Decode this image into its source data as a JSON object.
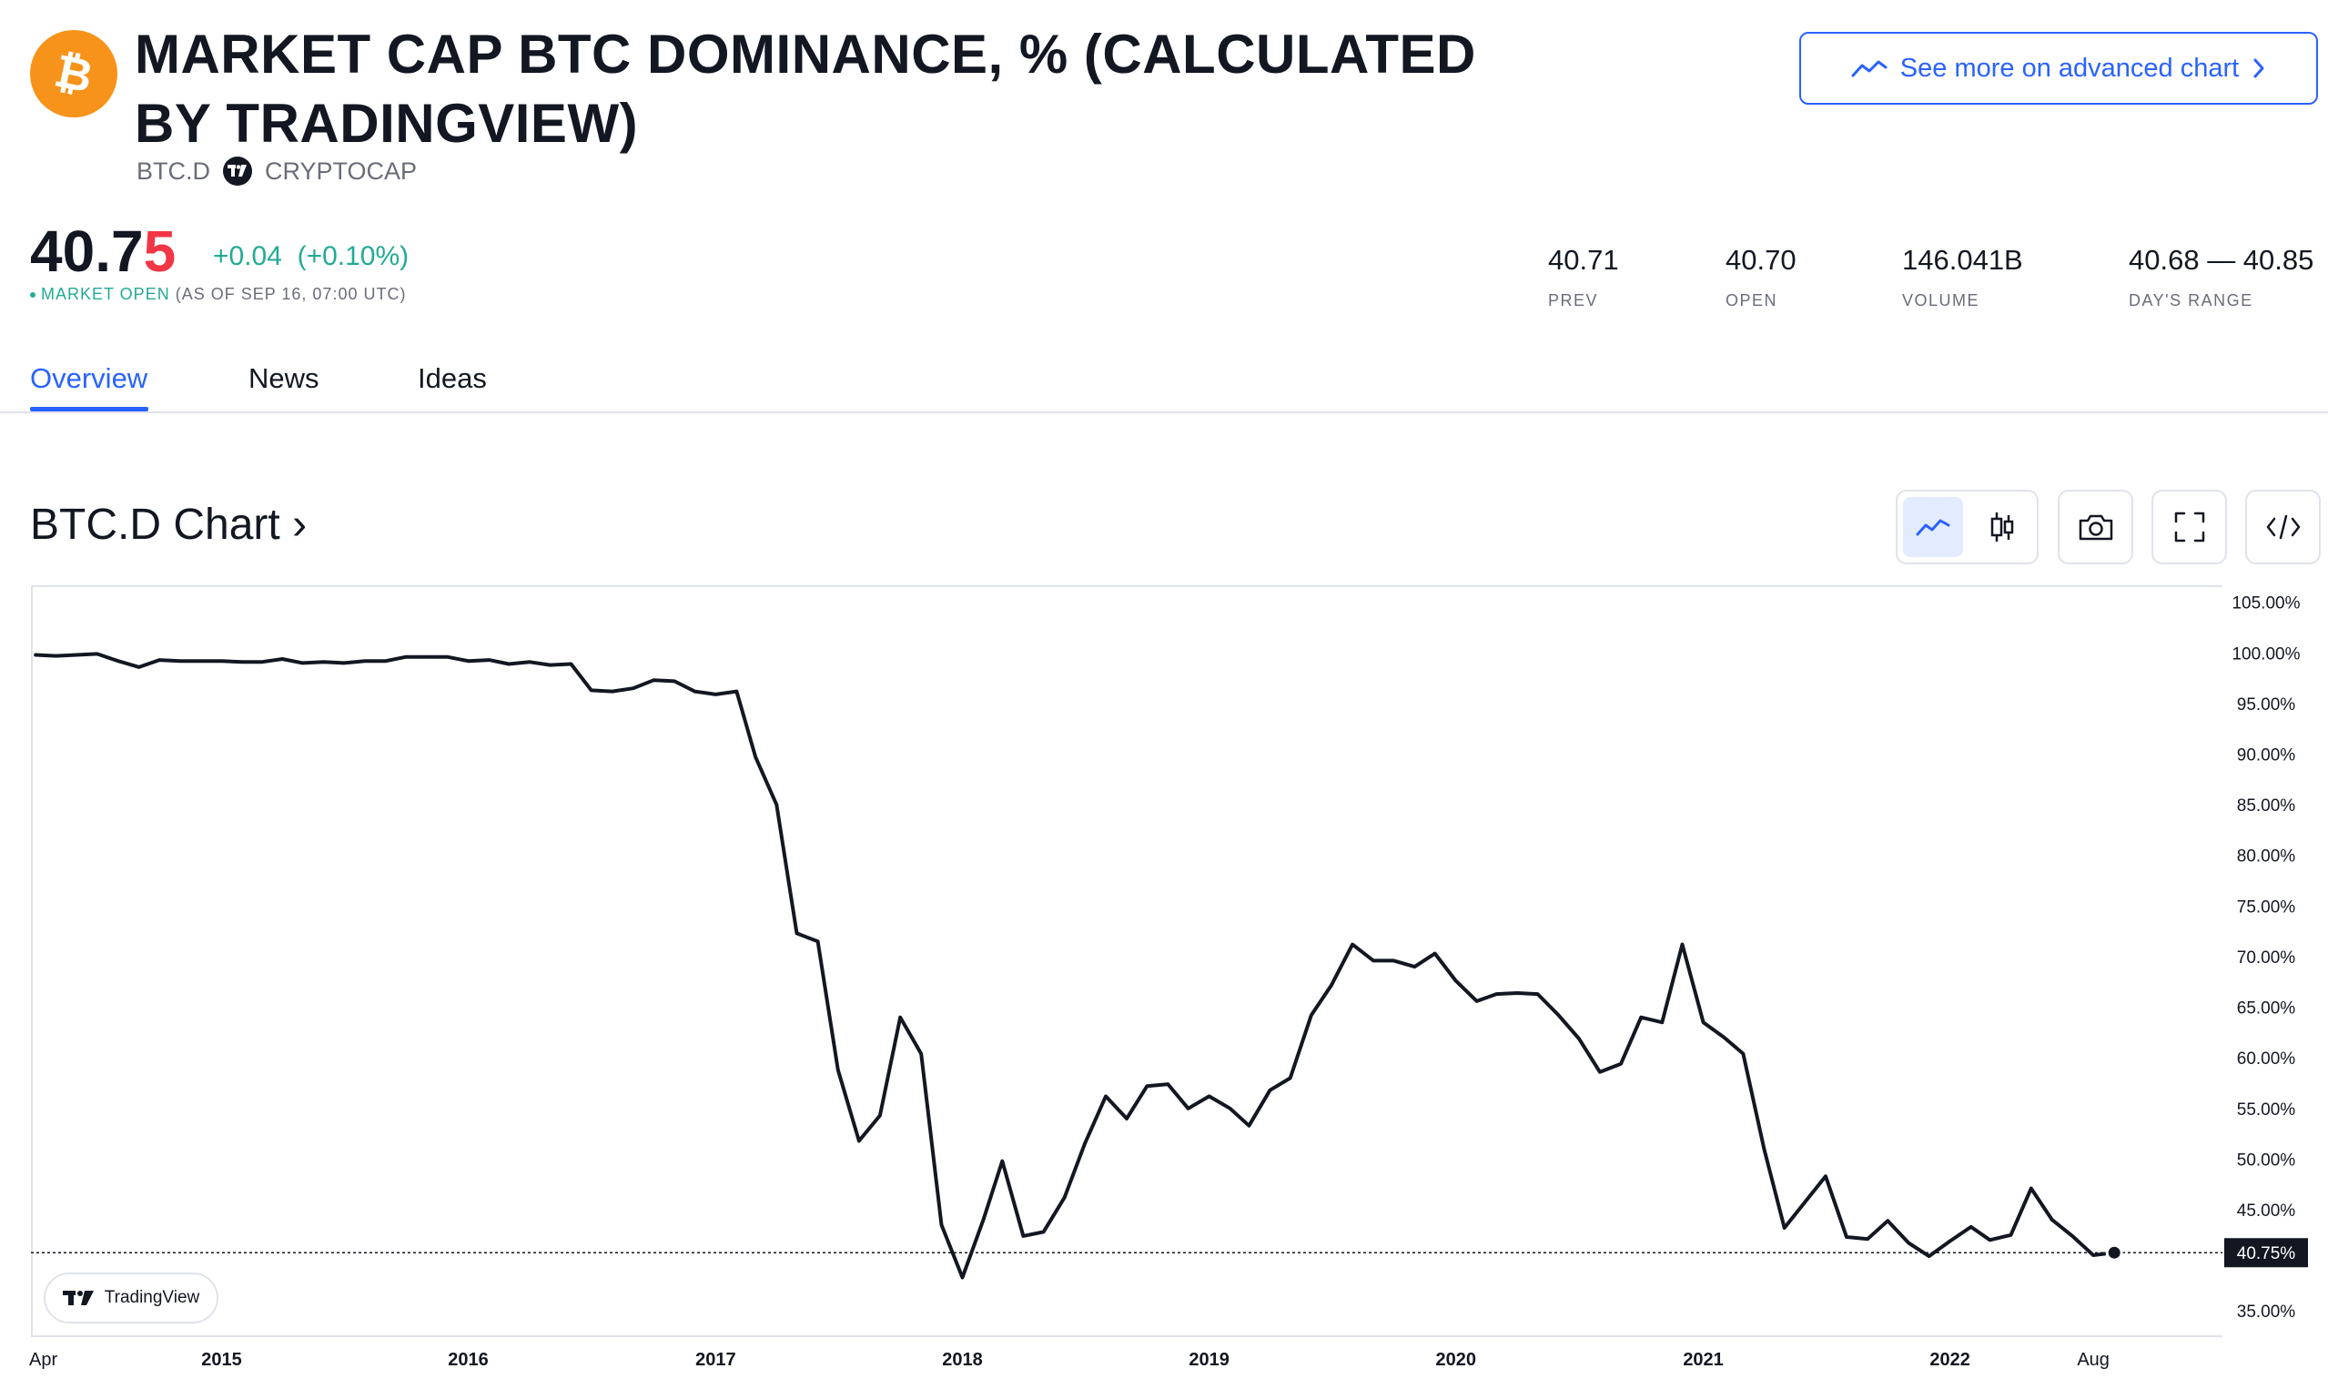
{
  "header": {
    "title": "MARKET CAP BTC DOMINANCE, % (CALCULATED BY TRADINGVIEW)",
    "symbol": "BTC.D",
    "exchange": "CRYPTOCAP",
    "logo_icon": "bitcoin-icon",
    "brand_color": "#f7931a",
    "advanced_chart_label": "See more on advanced chart"
  },
  "quote": {
    "price_main": "40.7",
    "price_last_digit": "5",
    "change": "+0.04",
    "change_pct": "(+0.10%)",
    "market_status": "MARKET OPEN",
    "as_of": "(AS OF SEP 16, 07:00 UTC)",
    "up_color": "#22ab94",
    "down_color": "#f23645"
  },
  "stats": [
    {
      "value": "40.71",
      "label": "PREV"
    },
    {
      "value": "40.70",
      "label": "OPEN"
    },
    {
      "value": "146.041B",
      "label": "VOLUME"
    },
    {
      "value": "40.68 — 40.85",
      "label": "DAY'S RANGE"
    }
  ],
  "tabs": [
    {
      "label": "Overview",
      "active": true
    },
    {
      "label": "News",
      "active": false
    },
    {
      "label": "Ideas",
      "active": false
    }
  ],
  "chart_section": {
    "title": "BTC.D Chart",
    "chevron": "›",
    "toolbar": [
      "line-chart-icon",
      "candles-icon",
      "camera-icon",
      "fullscreen-icon",
      "embed-code-icon"
    ],
    "watermark": "TradingView"
  },
  "chart_data": {
    "type": "line",
    "title": "",
    "xlabel": "",
    "ylabel": "",
    "x_ticks": [
      "Apr",
      "2015",
      "2016",
      "2017",
      "2018",
      "2019",
      "2020",
      "2021",
      "2022",
      "Aug"
    ],
    "y_ticks": [
      "105.00%",
      "100.00%",
      "95.00%",
      "90.00%",
      "85.00%",
      "80.00%",
      "75.00%",
      "70.00%",
      "65.00%",
      "60.00%",
      "55.00%",
      "50.00%",
      "45.00%",
      "40.75%",
      "35.00%"
    ],
    "ylim": [
      32.5,
      106.5
    ],
    "xlim": [
      "2014-03-25",
      "2023-02-08"
    ],
    "last_value": 40.75,
    "last_value_label": "40.75%",
    "line_color": "#131722",
    "grid": false,
    "series": [
      {
        "x": [
          "2014-04-01",
          "2014-05-01",
          "2014-06-01",
          "2014-07-01",
          "2014-08-01",
          "2014-09-01",
          "2014-10-01",
          "2014-11-01",
          "2014-12-01",
          "2015-01-01",
          "2015-02-01",
          "2015-03-01",
          "2015-04-01",
          "2015-05-01",
          "2015-06-01",
          "2015-07-01",
          "2015-08-01",
          "2015-09-01",
          "2015-10-01",
          "2015-11-01",
          "2015-12-01",
          "2016-01-01",
          "2016-02-01",
          "2016-03-01",
          "2016-04-01",
          "2016-05-01",
          "2016-06-01",
          "2016-07-01",
          "2016-08-01",
          "2016-09-01",
          "2016-10-01",
          "2016-11-01",
          "2016-12-01",
          "2017-01-01",
          "2017-02-01",
          "2017-03-01",
          "2017-04-01",
          "2017-05-01",
          "2017-06-01",
          "2017-07-01",
          "2017-08-01",
          "2017-09-01",
          "2017-10-01",
          "2017-11-01",
          "2017-12-01",
          "2018-01-01",
          "2018-02-01",
          "2018-03-01",
          "2018-04-01",
          "2018-05-01",
          "2018-06-01",
          "2018-07-01",
          "2018-08-01",
          "2018-09-01",
          "2018-10-01",
          "2018-11-01",
          "2018-12-01",
          "2019-01-01",
          "2019-02-01",
          "2019-03-01",
          "2019-04-01",
          "2019-05-01",
          "2019-06-01",
          "2019-07-01",
          "2019-08-01",
          "2019-09-01",
          "2019-10-01",
          "2019-11-01",
          "2019-12-01",
          "2020-01-01",
          "2020-02-01",
          "2020-03-01",
          "2020-04-01",
          "2020-05-01",
          "2020-06-01",
          "2020-07-01",
          "2020-08-01",
          "2020-09-01",
          "2020-10-01",
          "2020-11-01",
          "2020-12-01",
          "2021-01-01",
          "2021-02-01",
          "2021-03-01",
          "2021-04-01",
          "2021-05-01",
          "2021-06-01",
          "2021-07-01",
          "2021-08-01",
          "2021-09-01",
          "2021-10-01",
          "2021-11-01",
          "2021-12-01",
          "2022-01-01",
          "2022-02-01",
          "2022-03-01",
          "2022-04-01",
          "2022-05-01",
          "2022-06-01",
          "2022-07-01",
          "2022-08-01",
          "2022-09-01"
        ],
        "values": [
          99.8,
          99.7,
          99.8,
          99.9,
          99.2,
          98.6,
          99.3,
          99.2,
          99.2,
          99.2,
          99.1,
          99.1,
          99.4,
          99.0,
          99.1,
          99.0,
          99.2,
          99.2,
          99.6,
          99.6,
          99.6,
          99.2,
          99.3,
          98.9,
          99.1,
          98.8,
          98.9,
          96.3,
          96.2,
          96.5,
          97.3,
          97.2,
          96.2,
          95.9,
          96.2,
          89.7,
          85.0,
          72.3,
          71.5,
          58.8,
          51.8,
          54.3,
          64.0,
          60.4,
          43.5,
          38.3,
          44.0,
          49.8,
          42.4,
          42.8,
          46.2,
          51.5,
          56.2,
          54.0,
          57.2,
          57.4,
          55.0,
          56.2,
          55.0,
          53.3,
          56.8,
          58.0,
          64.2,
          67.2,
          71.2,
          69.6,
          69.6,
          69.0,
          70.3,
          67.6,
          65.6,
          66.3,
          66.4,
          66.3,
          64.2,
          61.9,
          58.6,
          59.4,
          64.0,
          63.5,
          71.2,
          63.5,
          62.0,
          60.4,
          51.0,
          43.2,
          45.8,
          48.3,
          42.3,
          42.1,
          43.9,
          41.7,
          40.4,
          41.9,
          43.3,
          42.0,
          42.5,
          47.1,
          44.0,
          42.4,
          40.5,
          40.75
        ]
      }
    ]
  }
}
